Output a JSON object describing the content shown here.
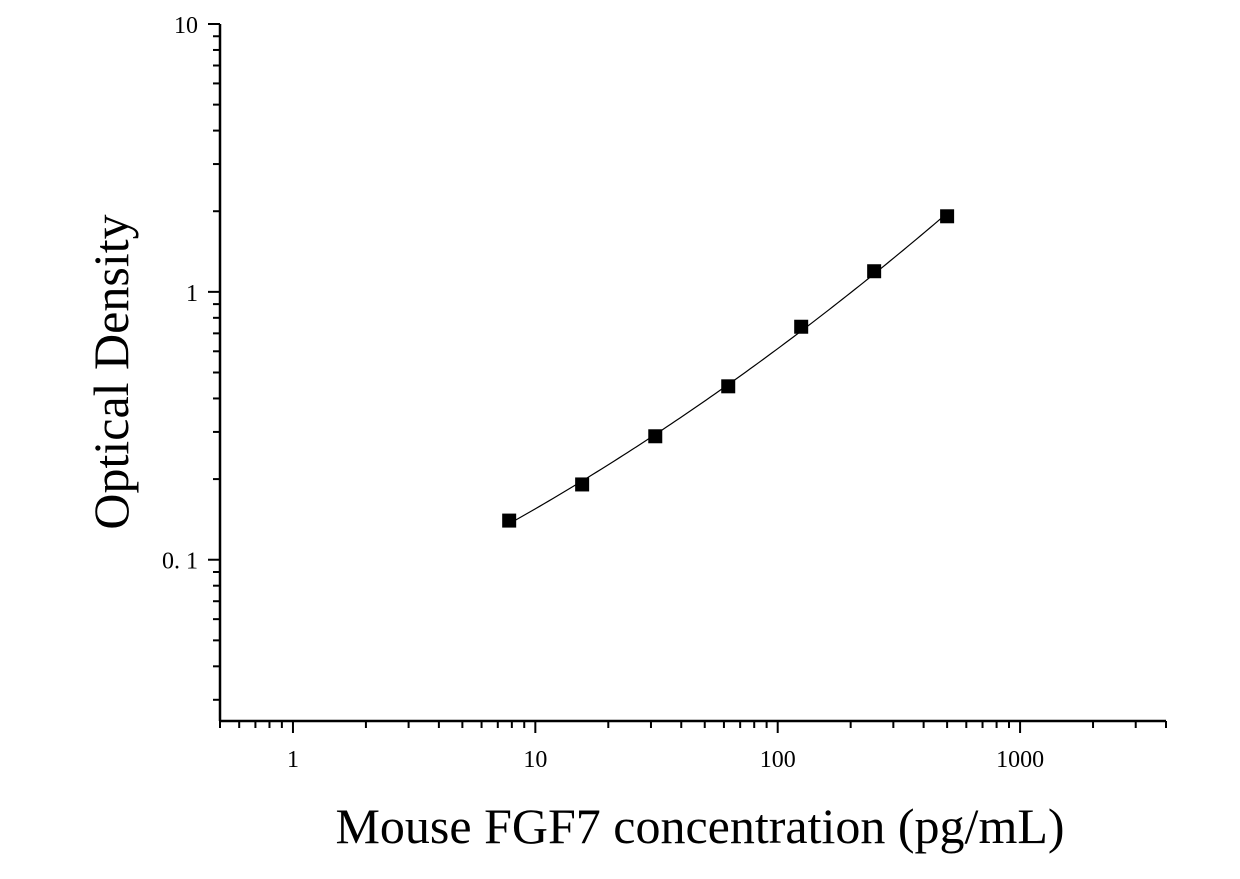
{
  "chart_data": {
    "type": "scatter",
    "title": "",
    "xlabel": "Mouse FGF7 concentration (pg/mL)",
    "ylabel": "Optical Density",
    "x_scale": "log",
    "y_scale": "log",
    "xlim": [
      0.5,
      4000
    ],
    "ylim": [
      0.025,
      10
    ],
    "x_tick_labels": [
      "1",
      "10",
      "100",
      "1000"
    ],
    "x_tick_values": [
      1,
      10,
      100,
      1000
    ],
    "y_tick_labels": [
      "10",
      "1",
      "0. 1"
    ],
    "y_tick_values": [
      10,
      1,
      0.1
    ],
    "grid": false,
    "legend": "none",
    "marker": "square",
    "marker_color": "#000000",
    "line_color": "#000000",
    "series": [
      {
        "x": [
          7.8,
          15.6,
          31.25,
          62.5,
          125,
          250,
          500
        ],
        "y": [
          0.14,
          0.191,
          0.289,
          0.444,
          0.741,
          1.194,
          1.915
        ]
      }
    ]
  }
}
